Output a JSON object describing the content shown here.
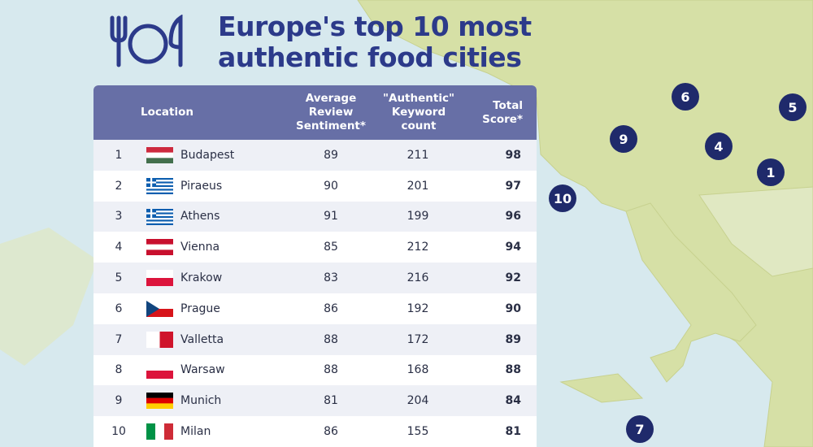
{
  "title": "Europe's top 10 most authentic food cities",
  "table": {
    "columns": [
      "Location",
      "Average Review Sentiment*",
      "\"Authentic\" Keyword count",
      "Total Score*"
    ],
    "rows": [
      [
        1,
        "Budapest",
        89,
        211,
        98
      ],
      [
        2,
        "Piraeus",
        90,
        201,
        97
      ],
      [
        3,
        "Athens",
        91,
        199,
        96
      ],
      [
        4,
        "Vienna",
        85,
        212,
        94
      ],
      [
        5,
        "Krakow",
        83,
        216,
        92
      ],
      [
        6,
        "Prague",
        86,
        192,
        90
      ],
      [
        7,
        "Valletta",
        88,
        172,
        89
      ],
      [
        8,
        "Warsaw",
        88,
        168,
        88
      ],
      [
        9,
        "Munich",
        81,
        204,
        84
      ],
      [
        10,
        "Milan",
        86,
        155,
        81
      ]
    ]
  },
  "map_markers": [
    "6",
    "5",
    "9",
    "4",
    "1",
    "10",
    "7"
  ]
}
